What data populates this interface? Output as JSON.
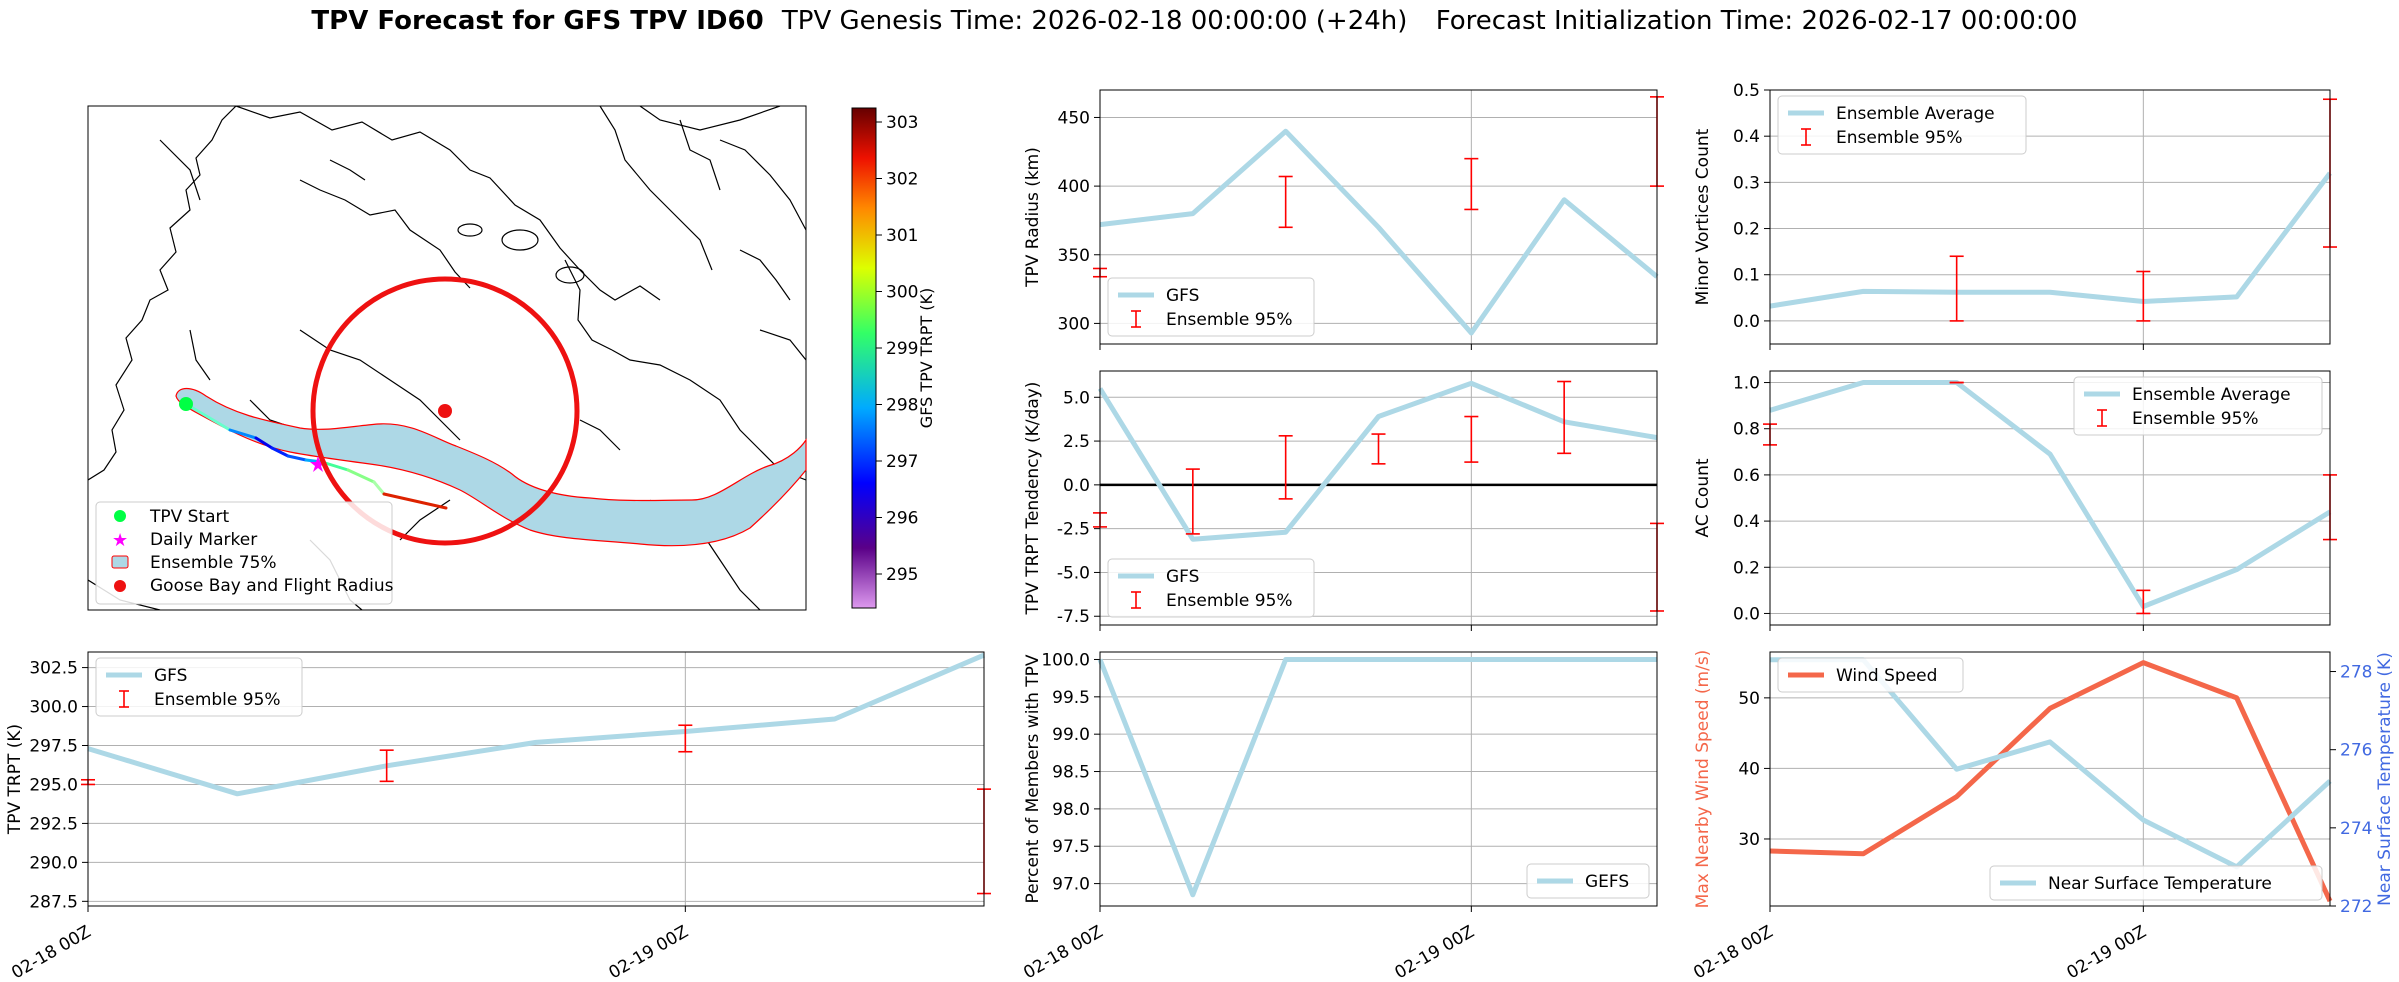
{
  "header": {
    "title_bold": "TPV Forecast for GFS TPV ID60",
    "genesis": "TPV Genesis Time: 2026-02-18 00:00:00 (+24h)",
    "init": "Forecast Initialization Time: 2026-02-17 00:00:00"
  },
  "colors": {
    "series": "#add8e6",
    "error": "#ff0000",
    "wind": "#f4674a",
    "temp_axis": "#4169e1",
    "zero": "#000000"
  },
  "map": {
    "colorbar_label": "GFS TPV TRPT (K)",
    "colorbar_ticks": [
      "303",
      "302",
      "301",
      "300",
      "299",
      "298",
      "297",
      "296",
      "295"
    ],
    "legend": [
      "TPV Start",
      "Daily Marker",
      "Ensemble 75%",
      "Goose Bay and Flight Radius"
    ]
  },
  "chart_data": [
    {
      "id": "radius",
      "type": "line",
      "ylabel": "TPV Radius (km)",
      "x": [
        0,
        0.25,
        0.5,
        0.75,
        1.0,
        1.25,
        1.5
      ],
      "ylim": [
        285,
        470
      ],
      "yticks": [
        "450",
        "400",
        "350",
        "300"
      ],
      "series": [
        {
          "name": "GFS",
          "values": [
            372,
            380,
            440,
            370,
            293,
            390,
            334
          ]
        }
      ],
      "errorbars": [
        {
          "x": 0,
          "low": 334,
          "high": 340
        },
        {
          "x": 0.5,
          "low": 370,
          "high": 407
        },
        {
          "x": 1.0,
          "low": 383,
          "high": 420
        },
        {
          "x": 1.5,
          "low": 400,
          "high": 465
        }
      ],
      "legend": [
        "GFS",
        "Ensemble 95%"
      ],
      "legend_loc": "lower-left"
    },
    {
      "id": "minor",
      "type": "line",
      "ylabel": "Minor Vortices Count",
      "x": [
        0,
        0.25,
        0.5,
        0.75,
        1.0,
        1.25,
        1.5
      ],
      "ylim": [
        -0.05,
        0.5
      ],
      "yticks": [
        "0.5",
        "0.4",
        "0.3",
        "0.2",
        "0.1",
        "0.0"
      ],
      "series": [
        {
          "name": "Ensemble Average",
          "values": [
            0.032,
            0.064,
            0.062,
            0.062,
            0.042,
            0.052,
            0.32
          ]
        }
      ],
      "errorbars": [
        {
          "x": 0.5,
          "low": 0.0,
          "high": 0.14
        },
        {
          "x": 1.0,
          "low": 0.0,
          "high": 0.107
        },
        {
          "x": 1.5,
          "low": 0.16,
          "high": 0.48
        }
      ],
      "legend": [
        "Ensemble Average",
        "Ensemble 95%"
      ],
      "legend_loc": "upper-left"
    },
    {
      "id": "tendency",
      "type": "line",
      "ylabel": "TPV TRPT Tendency (K/day)",
      "x": [
        0,
        0.25,
        0.5,
        0.75,
        1.0,
        1.25,
        1.5
      ],
      "ylim": [
        -8,
        6.5
      ],
      "yticks": [
        "5.0",
        "2.5",
        "0.0",
        "-2.5",
        "-5.0",
        "-7.5"
      ],
      "series": [
        {
          "name": "GFS",
          "values": [
            5.5,
            -3.1,
            -2.7,
            3.9,
            5.8,
            3.6,
            2.7
          ]
        }
      ],
      "errorbars": [
        {
          "x": 0,
          "low": -2.4,
          "high": -1.6
        },
        {
          "x": 0.25,
          "low": -2.8,
          "high": 0.9
        },
        {
          "x": 0.5,
          "low": -0.8,
          "high": 2.8
        },
        {
          "x": 0.75,
          "low": 1.2,
          "high": 2.9
        },
        {
          "x": 1.0,
          "low": 1.3,
          "high": 3.9
        },
        {
          "x": 1.25,
          "low": 1.8,
          "high": 5.9
        },
        {
          "x": 1.5,
          "low": -7.2,
          "high": -2.2
        }
      ],
      "hline": 0,
      "legend": [
        "GFS",
        "Ensemble 95%"
      ],
      "legend_loc": "lower-left"
    },
    {
      "id": "ac",
      "type": "line",
      "ylabel": "AC Count",
      "x": [
        0,
        0.25,
        0.5,
        0.75,
        1.0,
        1.25,
        1.5
      ],
      "ylim": [
        -0.05,
        1.05
      ],
      "yticks": [
        "1.0",
        "0.8",
        "0.6",
        "0.4",
        "0.2",
        "0.0"
      ],
      "series": [
        {
          "name": "Ensemble Average",
          "values": [
            0.88,
            1.0,
            1.0,
            0.69,
            0.03,
            0.19,
            0.44
          ]
        }
      ],
      "errorbars": [
        {
          "x": 0,
          "low": 0.73,
          "high": 0.82
        },
        {
          "x": 0.5,
          "low": 1.0,
          "high": 1.0
        },
        {
          "x": 1.0,
          "low": 0.0,
          "high": 0.1
        },
        {
          "x": 1.5,
          "low": 0.32,
          "high": 0.6
        }
      ],
      "legend": [
        "Ensemble Average",
        "Ensemble 95%"
      ],
      "legend_loc": "upper-right"
    },
    {
      "id": "trpt",
      "type": "line",
      "ylabel": "TPV TRPT (K)",
      "x": [
        0,
        0.25,
        0.5,
        0.75,
        1.0,
        1.25,
        1.5
      ],
      "ylim": [
        287.2,
        303.5
      ],
      "yticks": [
        "302.5",
        "300.0",
        "297.5",
        "295.0",
        "292.5",
        "290.0",
        "287.5"
      ],
      "xticks": [
        "02-18 00Z",
        "02-19 00Z"
      ],
      "series": [
        {
          "name": "GFS",
          "values": [
            297.3,
            294.4,
            296.2,
            297.7,
            298.4,
            299.2,
            303.3
          ]
        }
      ],
      "errorbars": [
        {
          "x": 0,
          "low": 295,
          "high": 295.3
        },
        {
          "x": 0.5,
          "low": 295.2,
          "high": 297.2
        },
        {
          "x": 1.0,
          "low": 297.1,
          "high": 298.8
        },
        {
          "x": 1.5,
          "low": 288.0,
          "high": 294.7
        }
      ],
      "legend": [
        "GFS",
        "Ensemble 95%"
      ],
      "legend_loc": "upper-left"
    },
    {
      "id": "percent",
      "type": "line",
      "ylabel": "Percent of Members with TPV",
      "x": [
        0,
        0.25,
        0.5,
        0.75,
        1.0,
        1.25,
        1.5
      ],
      "ylim": [
        96.7,
        100.1
      ],
      "yticks": [
        "100.0",
        "99.5",
        "99.0",
        "98.5",
        "98.0",
        "97.5",
        "97.0"
      ],
      "xticks": [
        "02-18 00Z",
        "02-19 00Z"
      ],
      "series": [
        {
          "name": "GEFS",
          "values": [
            100,
            96.85,
            100,
            100,
            100,
            100,
            100
          ]
        }
      ],
      "legend": [
        "GEFS"
      ],
      "legend_loc": "lower-right"
    },
    {
      "id": "wind",
      "type": "line",
      "ylabel": "Max Nearby Wind Speed (m/s)",
      "ylabel_right": "Near Surface Temperature (K)",
      "x": [
        0,
        0.25,
        0.5,
        0.75,
        1.0,
        1.25,
        1.5
      ],
      "ylim": [
        20.5,
        56.5
      ],
      "ylim_right": [
        272,
        278.5
      ],
      "yticks": [
        "50",
        "40",
        "30"
      ],
      "yticks_right": [
        "278",
        "276",
        "274",
        "272"
      ],
      "xticks": [
        "02-18 00Z",
        "02-19 00Z"
      ],
      "series": [
        {
          "name": "Wind Speed",
          "axis": "left",
          "values": [
            28.3,
            27.9,
            36.0,
            48.5,
            55.0,
            50.0,
            21.2
          ]
        },
        {
          "name": "Near Surface Temperature",
          "axis": "right",
          "values": [
            278.3,
            278.3,
            275.5,
            276.2,
            274.2,
            273.0,
            275.2
          ]
        }
      ],
      "legend": [
        "Wind Speed",
        "Near Surface Temperature"
      ]
    }
  ]
}
